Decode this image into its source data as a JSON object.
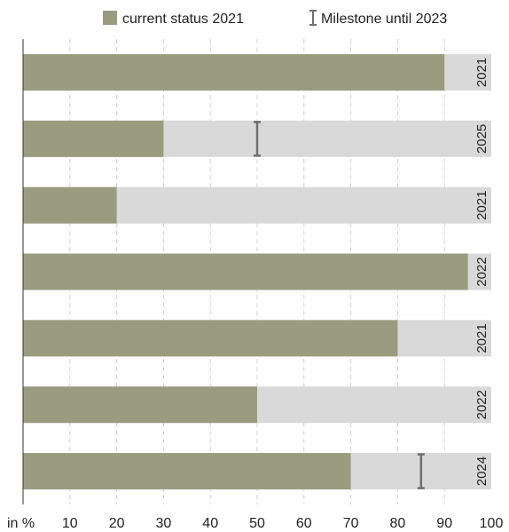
{
  "chart_data": {
    "type": "bar",
    "orientation": "horizontal",
    "stacked_background": true,
    "xlim": [
      0,
      100
    ],
    "x_unit_label": "in %",
    "x_ticks": [
      10,
      20,
      30,
      40,
      50,
      60,
      70,
      80,
      90,
      100
    ],
    "grid": "vertical-dashed",
    "legend_position": "top",
    "legend": {
      "current": "current status 2021",
      "milestone": "Milestone until 2023"
    },
    "colors": {
      "current": "#9a9c7f",
      "remaining": "#d9d9d9",
      "milestone": "#707070",
      "grid": "#d0d0d0",
      "axis": "#333333"
    },
    "bars": [
      {
        "value": 90,
        "milestone": null,
        "target_year": "2021"
      },
      {
        "value": 30,
        "milestone": 50,
        "target_year": "2025"
      },
      {
        "value": 20,
        "milestone": null,
        "target_year": "2021"
      },
      {
        "value": 95,
        "milestone": null,
        "target_year": "2022"
      },
      {
        "value": 80,
        "milestone": null,
        "target_year": "2021"
      },
      {
        "value": 50,
        "milestone": null,
        "target_year": "2022"
      },
      {
        "value": 70,
        "milestone": 85,
        "target_year": "2024"
      }
    ]
  }
}
